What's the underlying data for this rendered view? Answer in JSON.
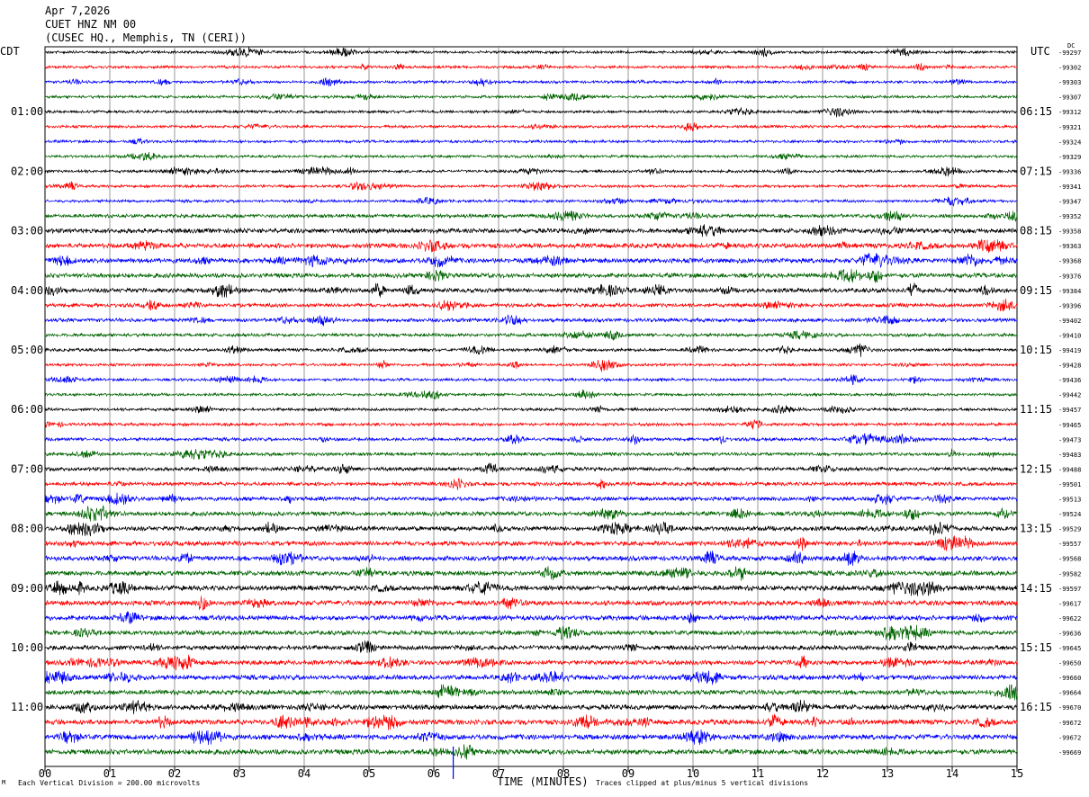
{
  "header": {
    "date": "Apr 7,2026",
    "station": "CUET HNZ NM 00",
    "location": "(CUSEC HQ., Memphis, TN (CERI))"
  },
  "left_tz": "CDT",
  "right_tz": "UTC",
  "right_top_label": "DC",
  "footer": {
    "scale": "Each Vertical Division =  200.00 microvolts",
    "clip": "Traces clipped at plus/minus 5 vertical divisions",
    "mark": "M"
  },
  "colors": {
    "cycle": [
      "#000000",
      "#ff0000",
      "#0000ff",
      "#006400"
    ],
    "grid": "#808080",
    "marker": "#0000ff"
  },
  "chart_data": {
    "type": "line",
    "xlabel": "TIME (MINUTES)",
    "x_ticks": [
      "00",
      "01",
      "02",
      "03",
      "04",
      "05",
      "06",
      "07",
      "08",
      "09",
      "10",
      "11",
      "12",
      "13",
      "14",
      "15"
    ],
    "xlim": [
      0,
      15
    ],
    "left_hour_labels": [
      "01:00",
      "02:00",
      "03:00",
      "04:00",
      "05:00",
      "06:00",
      "07:00",
      "08:00",
      "09:00",
      "10:00",
      "11:00"
    ],
    "right_hour_labels": [
      "06:15",
      "07:15",
      "08:15",
      "09:15",
      "10:15",
      "11:15",
      "12:15",
      "13:15",
      "14:15",
      "15:15",
      "16:15"
    ],
    "trace_offsets": [
      -99297,
      -99302,
      -99303,
      -99307,
      -99312,
      -99321,
      -99324,
      -99329,
      -99336,
      -99341,
      -99347,
      -99352,
      -99358,
      -99363,
      -99368,
      -99376,
      -99384,
      -99396,
      -99402,
      -99410,
      -99419,
      -99428,
      -99436,
      -99442,
      -99457,
      -99465,
      -99473,
      -99483,
      -99488,
      -99501,
      -99513,
      -99524,
      -99529,
      -99557,
      -99568,
      -99582,
      -99597,
      -99617,
      -99622,
      -99636,
      -99645,
      -99650,
      -99660,
      -99664,
      -99670,
      -99672,
      -99672,
      -99669
    ],
    "activity": [
      1,
      1,
      1,
      1,
      1,
      1,
      1,
      1,
      1,
      1,
      1,
      1.6,
      2.2,
      2.3,
      2.3,
      2.2,
      2.1,
      1.7,
      1.6,
      1.4,
      1.2,
      1,
      1,
      1,
      1.1,
      1.2,
      1.3,
      1.4,
      1.6,
      1.6,
      1.8,
      2,
      2.2,
      2.2,
      2.3,
      2.4,
      2.5,
      2.4,
      2.4,
      2.2,
      2.2,
      2.2,
      2.3,
      2.3,
      2.4,
      2.5,
      2.5,
      2.6
    ],
    "current_time_minute": 6.3
  }
}
